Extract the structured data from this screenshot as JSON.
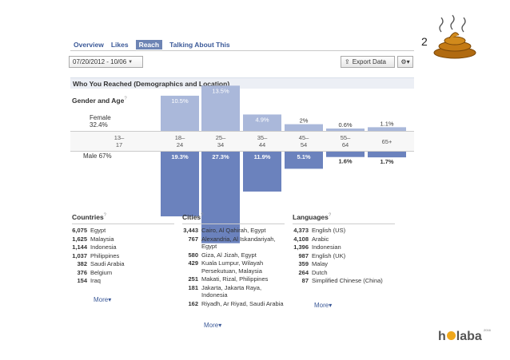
{
  "tabs": [
    "Overview",
    "Likes",
    "Reach",
    "Talking About This"
  ],
  "date_range": "07/20/2012 - 10/06",
  "export_label": "Export Data",
  "section_title": "Who You Reached (Demographics and Location)",
  "gender_age_title": "Gender and Age",
  "female": {
    "label": "Female",
    "pct": "32.4%"
  },
  "male": {
    "label": "Male",
    "pct": "67%"
  },
  "chart_data": {
    "type": "bar",
    "categories": [
      "13–17",
      "18–24",
      "25–34",
      "35–44",
      "45–54",
      "55–64",
      "65+"
    ],
    "category_labels": [
      [
        "13–",
        "17"
      ],
      [
        "18–",
        "24"
      ],
      [
        "25–",
        "34"
      ],
      [
        "35–",
        "44"
      ],
      [
        "45–",
        "54"
      ],
      [
        "55–",
        "64"
      ],
      [
        "65+"
      ]
    ],
    "series": [
      {
        "name": "Female",
        "values": [
          0,
          10.5,
          13.5,
          4.9,
          2,
          0.6,
          1.1
        ],
        "labels": [
          "",
          "10.5%",
          "13.5%",
          "4.9%",
          "2%",
          "0.6%",
          "1.1%"
        ]
      },
      {
        "name": "Male",
        "values": [
          0,
          19.3,
          27.3,
          11.9,
          5.1,
          1.6,
          1.7
        ],
        "labels": [
          "",
          "19.3%",
          "27.3%",
          "11.9%",
          "5.1%",
          "1.6%",
          "1.7%"
        ]
      }
    ],
    "colors": {
      "female": "#aab8da",
      "male": "#6b82bd"
    },
    "title": "Gender and Age"
  },
  "countries": {
    "title": "Countries",
    "items": [
      {
        "num": "6,075",
        "name": "Egypt"
      },
      {
        "num": "1,625",
        "name": "Malaysia"
      },
      {
        "num": "1,144",
        "name": "Indonesia"
      },
      {
        "num": "1,037",
        "name": "Philippines"
      },
      {
        "num": "382",
        "name": "Saudi Arabia"
      },
      {
        "num": "376",
        "name": "Belgium"
      },
      {
        "num": "154",
        "name": "Iraq"
      }
    ],
    "more": "More"
  },
  "cities": {
    "title": "Cities",
    "items": [
      {
        "num": "3,443",
        "name": "Cairo, Al Qahirah, Egypt"
      },
      {
        "num": "767",
        "name": "Alexandria, Al Iskandariyah, Egypt"
      },
      {
        "num": "580",
        "name": "Giza, Al Jizah, Egypt"
      },
      {
        "num": "429",
        "name": "Kuala Lumpur, Wilayah Persekutuan, Malaysia"
      },
      {
        "num": "251",
        "name": "Makati, Rizal, Philippines"
      },
      {
        "num": "181",
        "name": "Jakarta, Jakarta Raya, Indonesia"
      },
      {
        "num": "162",
        "name": "Riyadh, Ar Riyad, Saudi Arabia"
      }
    ],
    "more": "More"
  },
  "languages": {
    "title": "Languages",
    "items": [
      {
        "num": "4,373",
        "name": "English (US)"
      },
      {
        "num": "4,108",
        "name": "Arabic"
      },
      {
        "num": "1,396",
        "name": "Indonesian"
      },
      {
        "num": "987",
        "name": "English (UK)"
      },
      {
        "num": "359",
        "name": "Malay"
      },
      {
        "num": "264",
        "name": "Dutch"
      },
      {
        "num": "87",
        "name": "Simplified Chinese (China)"
      }
    ],
    "more": "More"
  },
  "annotation_number": "2",
  "logo": {
    "text_pre": "h",
    "text_post": "laba",
    "small": "2016"
  }
}
